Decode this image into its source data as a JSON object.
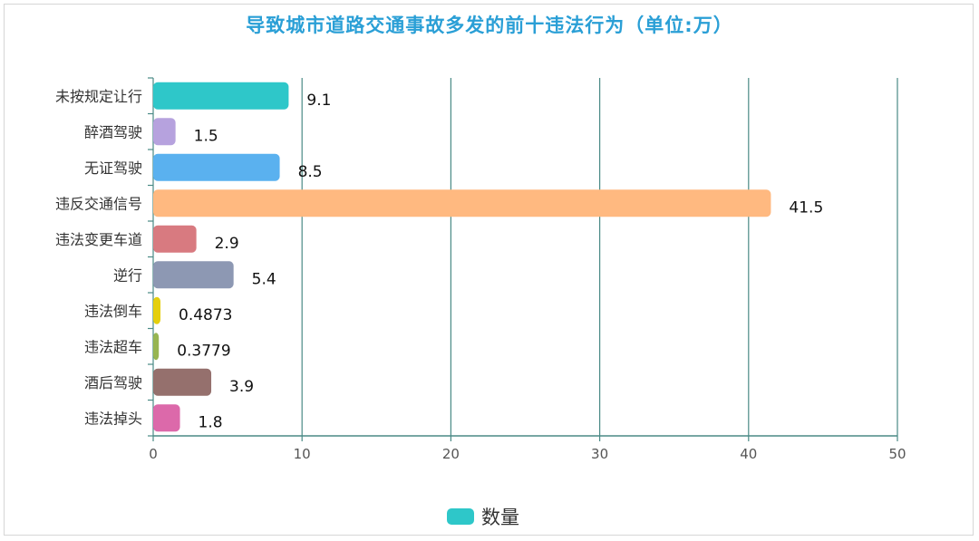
{
  "chart_data": {
    "type": "bar",
    "orientation": "horizontal",
    "title": "导致城市道路交通事故多发的前十违法行为（单位:万）",
    "categories": [
      "未按规定让行",
      "醉酒驾驶",
      "无证驾驶",
      "违反交通信号",
      "违法变更车道",
      "逆行",
      "违法倒车",
      "违法超车",
      "酒后驾驶",
      "违法掉头"
    ],
    "series": [
      {
        "name": "数量",
        "values": [
          9.1,
          1.5,
          8.5,
          41.5,
          2.9,
          5.4,
          0.4873,
          0.3779,
          3.9,
          1.8
        ],
        "labels": [
          "9.1",
          "1.5",
          "8.5",
          "41.5",
          "2.9",
          "5.4",
          "0.4873",
          "0.3779",
          "3.9",
          "1.8"
        ]
      }
    ],
    "bar_colors": [
      "#2ec7c9",
      "#b6a2de",
      "#5ab1ef",
      "#ffb980",
      "#d87a80",
      "#8d98b3",
      "#e5cf0d",
      "#97b552",
      "#95706d",
      "#dc69aa"
    ],
    "x_ticks": [
      "0",
      "10",
      "20",
      "30",
      "40",
      "50"
    ],
    "xlim": [
      0,
      50
    ],
    "grid": "vertical",
    "legend_position": "bottom-center",
    "legend_color": "#2ec7c9",
    "title_color": "#2a9fd6",
    "axis_color": "#4a8a86"
  }
}
